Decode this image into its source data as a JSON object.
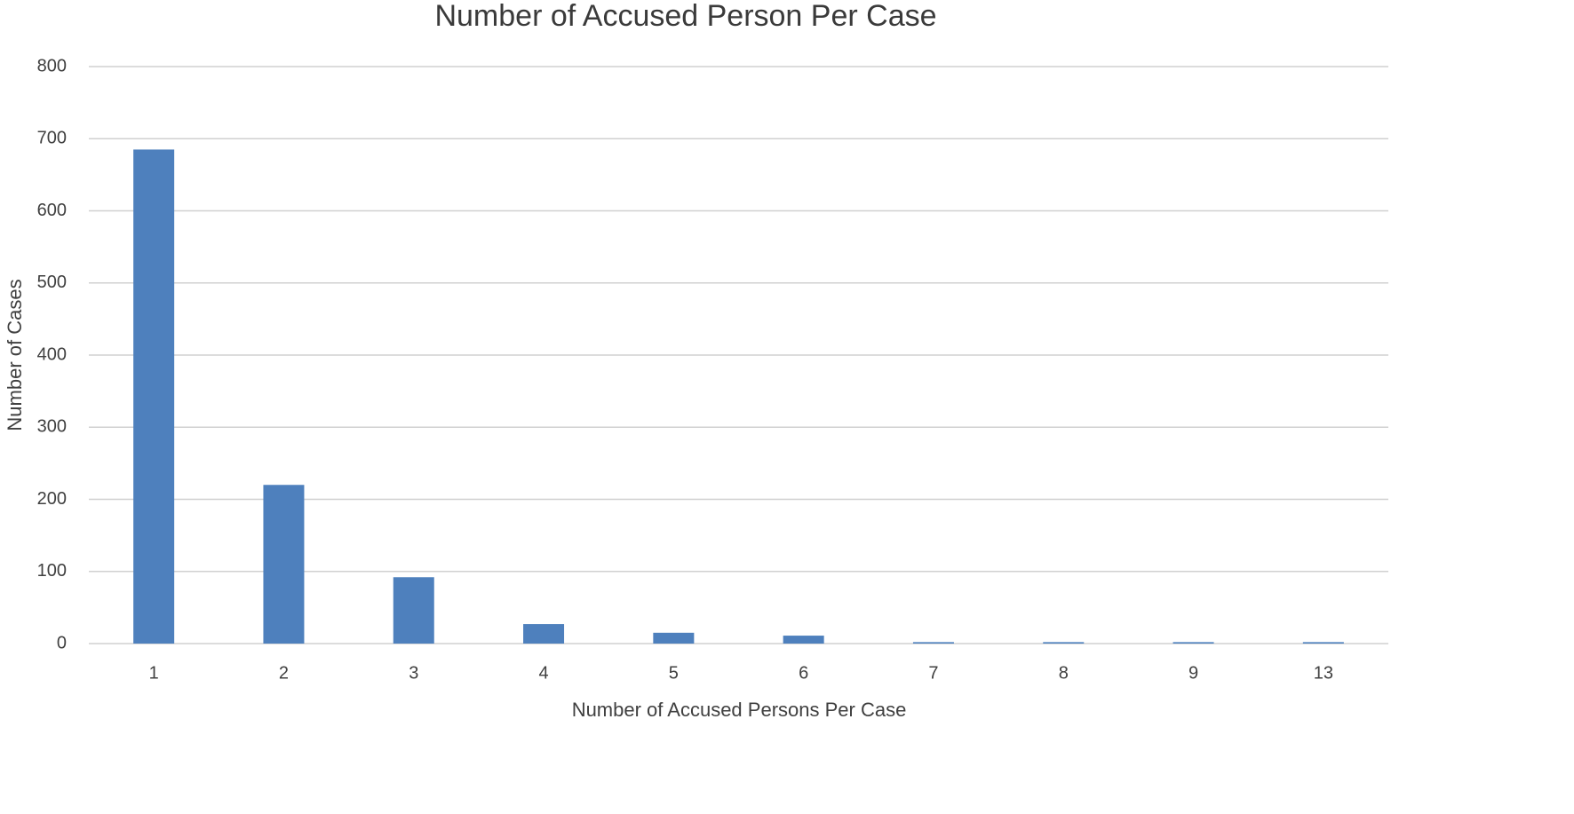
{
  "chart_data": {
    "type": "bar",
    "title": "Number of Accused Person Per Case",
    "x_label": "Number of Accused Persons Per Case",
    "y_label": "Number of Cases",
    "categories": [
      "1",
      "2",
      "3",
      "4",
      "5",
      "6",
      "7",
      "8",
      "9",
      "13"
    ],
    "values": [
      685,
      220,
      92,
      27,
      15,
      11,
      2,
      2,
      2,
      2
    ],
    "color": "#4e80bd",
    "ylim": [
      0,
      800
    ],
    "yticks": [
      0,
      100,
      200,
      300,
      400,
      500,
      600,
      700,
      800
    ],
    "grid": true
  }
}
